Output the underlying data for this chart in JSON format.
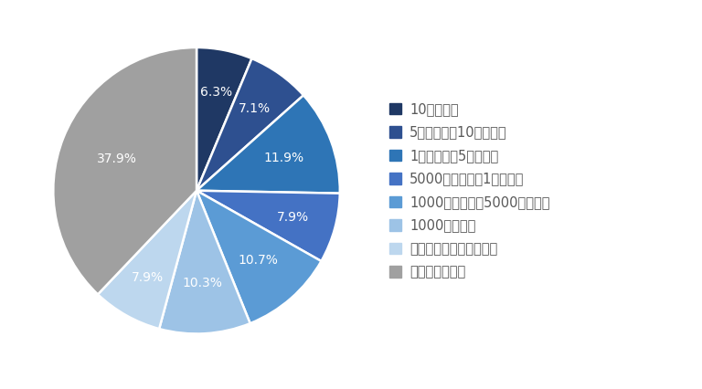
{
  "labels": [
    "10億円以上",
    "5億円以上〜10億円未満",
    "1億円以上〜5億円未満",
    "5000万円以上〜1億円未満",
    "1000万円以上〜5000万円未満",
    "1000万円未満",
    "被害額の検討がつかない",
    "被害はなかった"
  ],
  "values": [
    6.3,
    7.1,
    11.9,
    7.9,
    10.7,
    10.3,
    7.9,
    37.9
  ],
  "colors": [
    "#1f3864",
    "#2e5090",
    "#2e75b6",
    "#4472c4",
    "#5b9bd5",
    "#9dc3e6",
    "#bdd7ee",
    "#a0a0a0"
  ],
  "pct_labels": [
    "6.3%",
    "7.1%",
    "11.9%",
    "7.9%",
    "10.7%",
    "10.3%",
    "7.9%",
    "37.9%"
  ],
  "startangle": 90,
  "background_color": "#ffffff",
  "legend_fontsize": 10.5,
  "pct_fontsize": 10,
  "legend_text_color": "#595959"
}
